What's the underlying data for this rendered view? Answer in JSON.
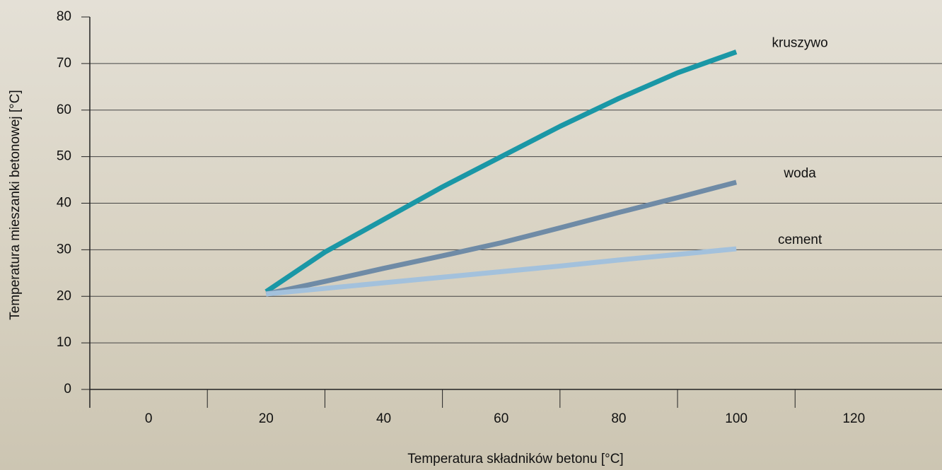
{
  "chart_data": {
    "type": "line",
    "x": [
      20,
      30,
      40,
      50,
      60,
      70,
      80,
      90,
      100
    ],
    "series": [
      {
        "name": "kruszywo",
        "color": "#1a97a6",
        "values": [
          21,
          29.5,
          36.5,
          43.5,
          50,
          56.5,
          62.5,
          68,
          72.5
        ]
      },
      {
        "name": "woda",
        "color": "#6f8ba6",
        "values": [
          20.5,
          23.2,
          26,
          28.7,
          31.5,
          34.7,
          38,
          41.2,
          44.5
        ]
      },
      {
        "name": "cement",
        "color": "#a3c1dc",
        "values": [
          20.5,
          21.7,
          22.9,
          24.1,
          25.3,
          26.5,
          27.8,
          29,
          30.2
        ]
      }
    ],
    "xlabel": "Temperatura składników betonu [°C]",
    "ylabel": "Temperatura mieszanki betonowej [°C]",
    "xlim": [
      -10,
      135
    ],
    "xticks": [
      0,
      20,
      40,
      60,
      80,
      100,
      120
    ],
    "ylim": [
      0,
      80
    ],
    "yticks": [
      0,
      10,
      20,
      30,
      40,
      50,
      60,
      70,
      80
    ],
    "grid": true
  }
}
